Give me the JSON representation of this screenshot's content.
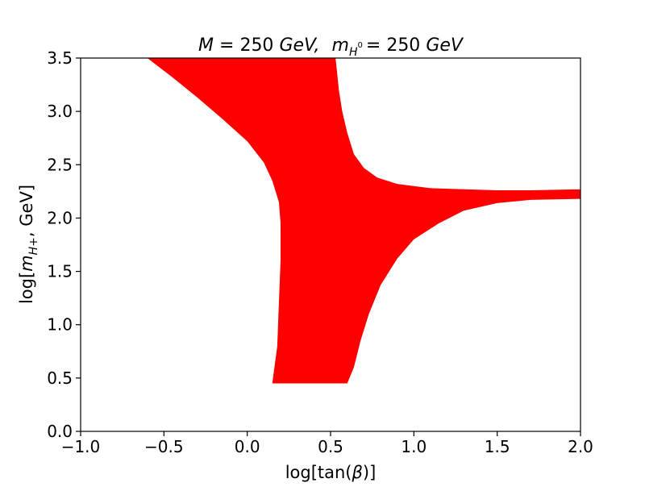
{
  "chart_data": {
    "type": "area",
    "title": "M = 250 GeV,  m_{H^0} = 250 GeV",
    "title_parts": {
      "M": "M",
      "eq1": "= 250",
      "unit1": "GeV,",
      "m": "m",
      "m_sub": "H",
      "m_sub_sup": "0",
      "eq2": "= 250",
      "unit2": "GeV"
    },
    "xlabel": "log[tan(β)]",
    "ylabel": "log[m_{H+}, GeV]",
    "xlabel_parts": {
      "pre": "log[tan(",
      "sym": "β",
      "post": ")]"
    },
    "ylabel_parts": {
      "pre": "log[",
      "sym": "m",
      "sub": "H+",
      "post": ", GeV]"
    },
    "xlim": [
      -1.0,
      2.0
    ],
    "ylim": [
      0.0,
      3.5
    ],
    "xticks": [
      -1.0,
      -0.5,
      0.0,
      0.5,
      1.0,
      1.5,
      2.0
    ],
    "xtick_labels": [
      "−1.0",
      "−0.5",
      "0.0",
      "0.5",
      "1.0",
      "1.5",
      "2.0"
    ],
    "yticks": [
      0.0,
      0.5,
      1.0,
      1.5,
      2.0,
      2.5,
      3.0,
      3.5
    ],
    "ytick_labels": [
      "0.0",
      "0.5",
      "1.0",
      "1.5",
      "2.0",
      "2.5",
      "3.0",
      "3.5"
    ],
    "grid": false,
    "legend": "none",
    "fill_color": "#ff0000",
    "series": [
      {
        "region_boundary": [
          [
            -0.6,
            3.5
          ],
          [
            -0.45,
            3.32
          ],
          [
            -0.3,
            3.13
          ],
          [
            -0.15,
            2.93
          ],
          [
            0.0,
            2.72
          ],
          [
            0.1,
            2.52
          ],
          [
            0.15,
            2.35
          ],
          [
            0.19,
            2.15
          ],
          [
            0.2,
            1.95
          ],
          [
            0.2,
            1.6
          ],
          [
            0.19,
            1.2
          ],
          [
            0.18,
            0.8
          ],
          [
            0.15,
            0.45
          ],
          [
            0.6,
            0.45
          ],
          [
            0.64,
            0.6
          ],
          [
            0.68,
            0.85
          ],
          [
            0.73,
            1.1
          ],
          [
            0.8,
            1.37
          ],
          [
            0.9,
            1.62
          ],
          [
            1.0,
            1.8
          ],
          [
            1.15,
            1.95
          ],
          [
            1.3,
            2.07
          ],
          [
            1.5,
            2.14
          ],
          [
            1.7,
            2.17
          ],
          [
            2.0,
            2.18
          ],
          [
            2.0,
            2.27
          ],
          [
            1.7,
            2.26
          ],
          [
            1.5,
            2.26
          ],
          [
            1.3,
            2.27
          ],
          [
            1.1,
            2.28
          ],
          [
            0.9,
            2.32
          ],
          [
            0.78,
            2.38
          ],
          [
            0.7,
            2.47
          ],
          [
            0.64,
            2.6
          ],
          [
            0.6,
            2.8
          ],
          [
            0.57,
            3.0
          ],
          [
            0.55,
            3.2
          ],
          [
            0.54,
            3.35
          ],
          [
            0.53,
            3.5
          ]
        ]
      }
    ]
  }
}
